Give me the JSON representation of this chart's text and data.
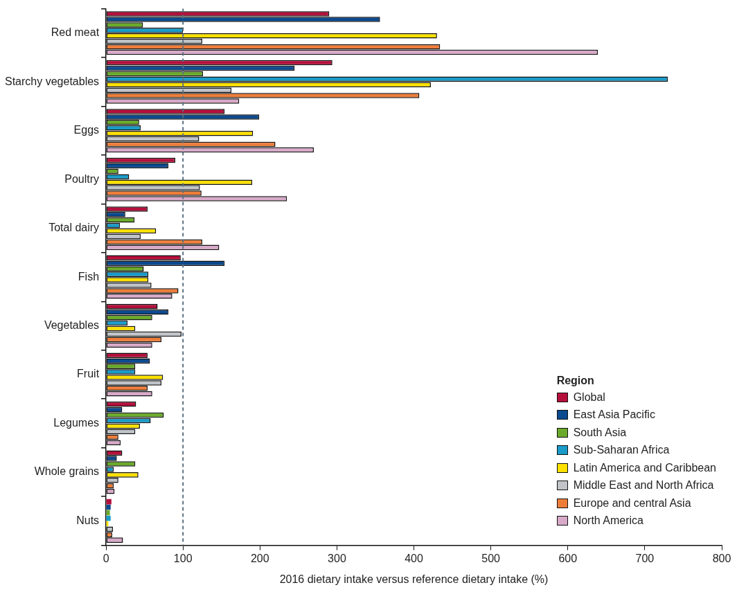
{
  "chart_data": {
    "type": "bar",
    "orientation": "horizontal",
    "xlabel": "2016 dietary intake versus reference dietary intake (%)",
    "legend_title": "Region",
    "legend": "bottom right",
    "grid": false,
    "categories": [
      "Red meat",
      "Starchy vegetables",
      "Eggs",
      "Poultry",
      "Total dairy",
      "Fish",
      "Vegetables",
      "Fruit",
      "Legumes",
      "Whole grains",
      "Nuts"
    ],
    "xlim": [
      0,
      800
    ],
    "xticks": [
      0,
      100,
      200,
      300,
      400,
      500,
      600,
      700,
      800
    ],
    "ref_lines": [
      {
        "axis": "x",
        "value": 100,
        "color": "#5a7080",
        "line_style": "dashed"
      }
    ],
    "series": [
      {
        "name": "Global",
        "color": "#b5103c",
        "values": [
          290,
          294,
          154,
          90,
          54,
          97,
          67,
          54,
          39,
          21,
          7
        ]
      },
      {
        "name": "East Asia Pacific",
        "color": "#0b4a8f",
        "values": [
          356,
          245,
          199,
          81,
          25,
          154,
          81,
          57,
          21,
          14,
          6
        ]
      },
      {
        "name": "South Asia",
        "color": "#6aaa2a",
        "values": [
          48,
          126,
          43,
          16,
          37,
          49,
          60,
          38,
          75,
          38,
          5
        ]
      },
      {
        "name": "Sub-Saharan Africa",
        "color": "#1a9bc8",
        "values": [
          100,
          730,
          45,
          30,
          18,
          55,
          28,
          38,
          58,
          10,
          6
        ]
      },
      {
        "name": "Latin America and Caribbean",
        "color": "#ffe100",
        "values": [
          430,
          422,
          191,
          190,
          65,
          55,
          38,
          74,
          44,
          42,
          3
        ]
      },
      {
        "name": "Middle East and North Africa",
        "color": "#c0c4c8",
        "values": [
          125,
          163,
          121,
          122,
          45,
          59,
          98,
          72,
          38,
          16,
          9
        ]
      },
      {
        "name": "Europe and central  Asia",
        "color": "#ee7d3a",
        "values": [
          434,
          407,
          220,
          124,
          125,
          94,
          72,
          54,
          16,
          10,
          8
        ]
      },
      {
        "name": "North America",
        "color": "#d8a9c8",
        "values": [
          639,
          173,
          270,
          235,
          147,
          86,
          60,
          60,
          19,
          11,
          22
        ]
      }
    ]
  }
}
